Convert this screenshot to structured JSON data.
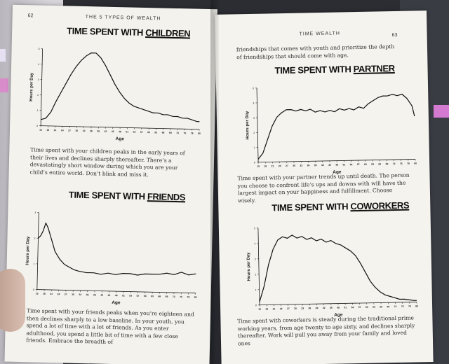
{
  "book": {
    "left": {
      "running_head": "THE 5 TYPES OF WEALTH",
      "page_number": "62",
      "section1": {
        "title_prefix": "TIME SPENT WITH ",
        "title_emph": "CHILDREN",
        "body": "Time spent with your children peaks in the early years of their lives and declines sharply thereafter. There’s a devastatingly short window during which you are your child’s entire world. Don’t blink and miss it."
      },
      "section2": {
        "title_prefix": "TIME SPENT WITH ",
        "title_emph": "FRIENDS",
        "body": "Time spent with your friends peaks when you’re eighteen and then declines sharply to a low baseline. In your youth, you spend a lot of time with a lot of friends. As you enter adulthood, you spend a little bit of time with a few close friends. Embrace the breadth of"
      }
    },
    "right": {
      "running_head": "TIME WEALTH",
      "page_number": "63",
      "top_text": "friendships that comes with youth and prioritize the depth of friendships that should come with age.",
      "section1": {
        "title_prefix": "TIME SPENT WITH ",
        "title_emph": "PARTNER",
        "body": "Time spent with your partner trends up until death. The person you choose to confront life’s ups and downs with will have the largest impact on your happiness and fulfillment. Choose wisely."
      },
      "section2": {
        "title_prefix": "TIME SPENT WITH ",
        "title_emph": "COWORKERS",
        "body": "Time spent with coworkers is steady during the traditional prime working years, from age twenty to age sixty, and declines sharply thereafter. Work will pull you away from your family and loved ones"
      }
    }
  },
  "chart_data": [
    {
      "type": "line",
      "title": "TIME SPENT WITH CHILDREN",
      "xlabel": "Age",
      "ylabel": "Hours per Day",
      "x_ticks": [
        "15",
        "18",
        "21",
        "24",
        "27",
        "30",
        "33",
        "36",
        "39",
        "42",
        "45",
        "48",
        "51",
        "54",
        "57",
        "60",
        "63",
        "66",
        "69",
        "72",
        "75",
        "78",
        "80"
      ],
      "y_ticks": [
        "0",
        "1",
        "2",
        "3",
        "4",
        "5"
      ],
      "x": [
        15,
        17,
        19,
        21,
        23,
        25,
        27,
        29,
        31,
        33,
        35,
        37,
        39,
        41,
        43,
        45,
        47,
        49,
        51,
        53,
        55,
        57,
        59,
        61,
        63,
        65,
        67,
        69,
        71,
        73,
        75,
        77,
        79,
        80
      ],
      "y": [
        0.4,
        0.5,
        0.9,
        1.6,
        2.2,
        2.8,
        3.4,
        3.9,
        4.3,
        4.6,
        4.8,
        4.8,
        4.5,
        4.0,
        3.4,
        2.8,
        2.3,
        1.9,
        1.6,
        1.4,
        1.3,
        1.2,
        1.1,
        1.0,
        1.0,
        0.9,
        0.9,
        0.8,
        0.8,
        0.7,
        0.7,
        0.6,
        0.5,
        0.5
      ],
      "xlim": [
        15,
        80
      ],
      "ylim": [
        0,
        5
      ],
      "line_color": "#111111"
    },
    {
      "type": "line",
      "title": "TIME SPENT WITH FRIENDS",
      "xlabel": "Age",
      "ylabel": "Hours per Day",
      "x_ticks": [
        "15",
        "18",
        "21",
        "24",
        "27",
        "30",
        "33",
        "36",
        "39",
        "42",
        "45",
        "48",
        "51",
        "54",
        "57",
        "60",
        "63",
        "66",
        "69",
        "72",
        "75",
        "78",
        "80"
      ],
      "y_ticks": [
        "0",
        "1",
        "2",
        "3"
      ],
      "x": [
        15,
        16,
        17,
        18,
        19,
        20,
        21,
        22,
        24,
        26,
        28,
        30,
        32,
        35,
        38,
        41,
        44,
        47,
        50,
        53,
        56,
        59,
        62,
        65,
        68,
        71,
        74,
        77,
        80
      ],
      "y": [
        2.0,
        2.1,
        2.3,
        2.6,
        2.4,
        2.1,
        1.8,
        1.5,
        1.2,
        1.0,
        0.9,
        0.8,
        0.75,
        0.7,
        0.7,
        0.65,
        0.7,
        0.65,
        0.7,
        0.7,
        0.65,
        0.7,
        0.7,
        0.7,
        0.75,
        0.7,
        0.8,
        0.7,
        0.75
      ],
      "xlim": [
        15,
        80
      ],
      "ylim": [
        0,
        3
      ],
      "line_color": "#111111"
    },
    {
      "type": "line",
      "title": "TIME SPENT WITH PARTNER",
      "xlabel": "Age",
      "ylabel": "Hours per Day",
      "x_ticks": [
        "15",
        "18",
        "21",
        "24",
        "27",
        "30",
        "33",
        "36",
        "39",
        "42",
        "45",
        "48",
        "51",
        "54",
        "57",
        "60",
        "63",
        "66",
        "69",
        "72",
        "75",
        "78",
        "80"
      ],
      "y_ticks": [
        "0",
        "1",
        "2",
        "3",
        "4",
        "5"
      ],
      "x": [
        15,
        17,
        19,
        21,
        23,
        25,
        27,
        29,
        31,
        33,
        35,
        37,
        39,
        41,
        43,
        45,
        47,
        49,
        51,
        53,
        55,
        57,
        59,
        61,
        63,
        65,
        67,
        69,
        71,
        73,
        75,
        77,
        79,
        80
      ],
      "y": [
        0.2,
        0.6,
        1.5,
        2.4,
        3.0,
        3.3,
        3.5,
        3.5,
        3.4,
        3.5,
        3.4,
        3.5,
        3.3,
        3.4,
        3.3,
        3.4,
        3.3,
        3.5,
        3.4,
        3.5,
        3.4,
        3.6,
        3.5,
        3.8,
        4.0,
        4.2,
        4.3,
        4.3,
        4.4,
        4.3,
        4.4,
        4.1,
        3.6,
        2.9
      ],
      "xlim": [
        15,
        80
      ],
      "ylim": [
        0,
        5
      ],
      "line_color": "#111111"
    },
    {
      "type": "line",
      "title": "TIME SPENT WITH COWORKERS",
      "xlabel": "Age",
      "ylabel": "Hours per Day",
      "x_ticks": [
        "15",
        "18",
        "21",
        "24",
        "27",
        "30",
        "33",
        "36",
        "39",
        "42",
        "45",
        "48",
        "51",
        "54",
        "57",
        "60",
        "63",
        "66",
        "69",
        "72",
        "75",
        "78",
        "80"
      ],
      "y_ticks": [
        "0",
        "1",
        "2",
        "3",
        "4",
        "5"
      ],
      "x": [
        15,
        17,
        19,
        21,
        23,
        25,
        27,
        29,
        31,
        33,
        35,
        37,
        39,
        41,
        43,
        45,
        47,
        49,
        51,
        53,
        55,
        57,
        59,
        61,
        63,
        65,
        67,
        69,
        71,
        73,
        75,
        77,
        79,
        80
      ],
      "y": [
        0.2,
        1.2,
        2.6,
        3.6,
        4.2,
        4.4,
        4.3,
        4.5,
        4.3,
        4.4,
        4.2,
        4.3,
        4.1,
        4.2,
        4.0,
        4.1,
        3.9,
        3.8,
        3.6,
        3.4,
        3.1,
        2.6,
        2.0,
        1.4,
        1.0,
        0.7,
        0.5,
        0.4,
        0.3,
        0.2,
        0.2,
        0.15,
        0.1,
        0.1
      ],
      "xlim": [
        15,
        80
      ],
      "ylim": [
        0,
        5
      ],
      "line_color": "#111111"
    }
  ]
}
